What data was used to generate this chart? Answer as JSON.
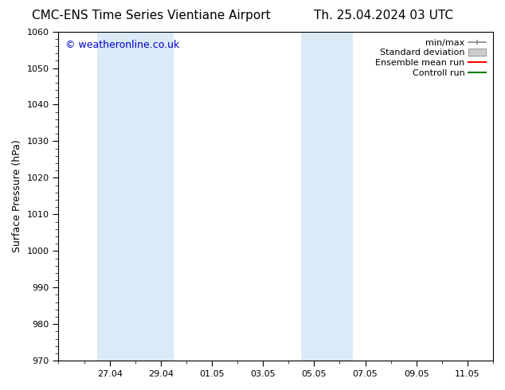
{
  "title_left": "CMC-ENS Time Series Vientiane Airport",
  "title_right": "Th. 25.04.2024 03 UTC",
  "ylabel": "Surface Pressure (hPa)",
  "ylim": [
    970,
    1060
  ],
  "yticks": [
    970,
    980,
    990,
    1000,
    1010,
    1020,
    1030,
    1040,
    1050,
    1060
  ],
  "xtick_labels": [
    "27.04",
    "29.04",
    "01.05",
    "03.05",
    "05.05",
    "07.05",
    "09.05",
    "11.05"
  ],
  "xtick_positions": [
    2.0,
    4.0,
    6.0,
    8.0,
    10.0,
    12.0,
    14.0,
    16.0
  ],
  "xlim": [
    0.0,
    17.0
  ],
  "shaded_bands": [
    {
      "x_start": 1.5,
      "x_end": 4.5
    },
    {
      "x_start": 9.5,
      "x_end": 11.5
    }
  ],
  "shade_color": "#daeaf7",
  "background_color": "#ffffff",
  "watermark_text": "© weatheronline.co.uk",
  "watermark_color": "#0000cc",
  "legend_entries": [
    {
      "label": "min/max",
      "color": "#aaaaaa",
      "style": "minmax"
    },
    {
      "label": "Standard deviation",
      "color": "#cccccc",
      "style": "stddev"
    },
    {
      "label": "Ensemble mean run",
      "color": "#ff0000",
      "style": "line"
    },
    {
      "label": "Controll run",
      "color": "#008000",
      "style": "line"
    }
  ],
  "title_fontsize": 11,
  "legend_fontsize": 8,
  "ylabel_fontsize": 9,
  "tick_fontsize": 8,
  "watermark_fontsize": 9
}
